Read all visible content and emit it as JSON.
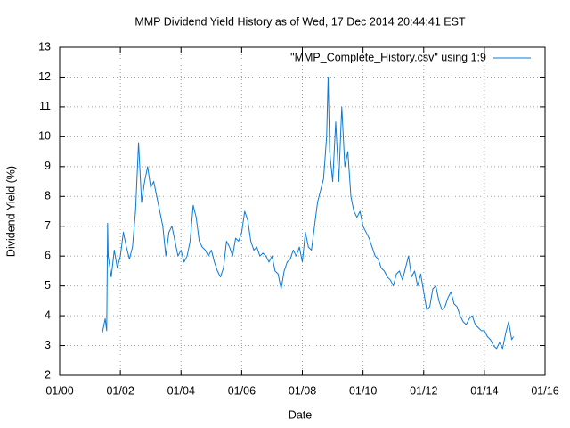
{
  "chart_data": {
    "type": "line",
    "title": "MMP Dividend Yield History as of Wed, 17 Dec 2014 20:44:41 EST",
    "x_label": "Date",
    "y_label": "Dividend Yield (%)",
    "xlim": [
      2000,
      2016
    ],
    "xticks": [
      {
        "value": 2000,
        "label": "01/00"
      },
      {
        "value": 2002,
        "label": "01/02"
      },
      {
        "value": 2004,
        "label": "01/04"
      },
      {
        "value": 2006,
        "label": "01/06"
      },
      {
        "value": 2008,
        "label": "01/08"
      },
      {
        "value": 2010,
        "label": "01/10"
      },
      {
        "value": 2012,
        "label": "01/12"
      },
      {
        "value": 2014,
        "label": "01/14"
      },
      {
        "value": 2016,
        "label": "01/16"
      }
    ],
    "ylim": [
      2,
      13
    ],
    "yticks": [
      2,
      3,
      4,
      5,
      6,
      7,
      8,
      9,
      10,
      11,
      12,
      13
    ],
    "grid": true,
    "legend": "top right",
    "series": [
      {
        "name": "\"MMP_Complete_History.csv\" using 1:9",
        "color": "#0a7ad6",
        "x": [
          2001.4,
          2001.5,
          2001.55,
          2001.58,
          2001.6,
          2001.7,
          2001.8,
          2001.9,
          2002.0,
          2002.1,
          2002.2,
          2002.3,
          2002.4,
          2002.5,
          2002.6,
          2002.7,
          2002.8,
          2002.9,
          2003.0,
          2003.1,
          2003.2,
          2003.3,
          2003.4,
          2003.5,
          2003.6,
          2003.7,
          2003.8,
          2003.9,
          2004.0,
          2004.1,
          2004.2,
          2004.3,
          2004.4,
          2004.5,
          2004.6,
          2004.7,
          2004.8,
          2004.9,
          2005.0,
          2005.1,
          2005.2,
          2005.3,
          2005.4,
          2005.5,
          2005.6,
          2005.7,
          2005.8,
          2005.9,
          2006.0,
          2006.1,
          2006.2,
          2006.3,
          2006.4,
          2006.5,
          2006.6,
          2006.7,
          2006.8,
          2006.9,
          2007.0,
          2007.1,
          2007.2,
          2007.3,
          2007.4,
          2007.5,
          2007.6,
          2007.7,
          2007.8,
          2007.9,
          2008.0,
          2008.1,
          2008.2,
          2008.3,
          2008.4,
          2008.5,
          2008.6,
          2008.7,
          2008.8,
          2008.85,
          2008.9,
          2009.0,
          2009.1,
          2009.2,
          2009.3,
          2009.4,
          2009.5,
          2009.6,
          2009.7,
          2009.8,
          2009.9,
          2010.0,
          2010.1,
          2010.2,
          2010.3,
          2010.4,
          2010.5,
          2010.6,
          2010.7,
          2010.8,
          2010.9,
          2011.0,
          2011.1,
          2011.2,
          2011.3,
          2011.4,
          2011.5,
          2011.6,
          2011.7,
          2011.8,
          2011.9,
          2012.0,
          2012.1,
          2012.2,
          2012.3,
          2012.4,
          2012.5,
          2012.6,
          2012.7,
          2012.8,
          2012.9,
          2013.0,
          2013.1,
          2013.2,
          2013.3,
          2013.4,
          2013.5,
          2013.6,
          2013.7,
          2013.8,
          2013.9,
          2014.0,
          2014.1,
          2014.2,
          2014.3,
          2014.4,
          2014.5,
          2014.6,
          2014.7,
          2014.8,
          2014.9,
          2014.96
        ],
        "values": [
          3.4,
          3.9,
          3.5,
          7.1,
          6.0,
          5.3,
          6.2,
          5.6,
          6.0,
          6.8,
          6.3,
          5.9,
          6.3,
          7.5,
          9.8,
          7.8,
          8.5,
          9.0,
          8.3,
          8.5,
          8.0,
          7.5,
          7.0,
          6.0,
          6.8,
          7.0,
          6.5,
          6.0,
          6.2,
          5.8,
          6.0,
          6.5,
          7.7,
          7.3,
          6.5,
          6.3,
          6.2,
          6.0,
          6.2,
          5.8,
          5.5,
          5.3,
          5.6,
          6.5,
          6.3,
          6.0,
          6.6,
          6.5,
          6.8,
          7.5,
          7.2,
          6.5,
          6.2,
          6.3,
          6.0,
          6.1,
          6.0,
          5.8,
          6.0,
          5.5,
          5.4,
          4.9,
          5.5,
          5.8,
          5.9,
          6.2,
          6.0,
          6.3,
          5.8,
          6.8,
          6.3,
          6.2,
          7.0,
          7.8,
          8.2,
          8.6,
          10.0,
          12.0,
          9.5,
          8.5,
          10.5,
          8.5,
          11.0,
          9.0,
          9.5,
          8.0,
          7.5,
          7.3,
          7.5,
          7.0,
          6.8,
          6.6,
          6.3,
          6.0,
          5.9,
          5.6,
          5.5,
          5.3,
          5.2,
          5.0,
          5.4,
          5.5,
          5.2,
          5.6,
          6.0,
          5.3,
          5.5,
          5.0,
          5.4,
          4.8,
          4.2,
          4.3,
          4.9,
          5.0,
          4.5,
          4.2,
          4.3,
          4.6,
          4.8,
          4.4,
          4.3,
          4.0,
          3.8,
          3.7,
          3.9,
          4.0,
          3.7,
          3.6,
          3.5,
          3.5,
          3.3,
          3.2,
          3.0,
          2.9,
          3.1,
          2.9,
          3.4,
          3.8,
          3.2,
          3.3
        ]
      }
    ]
  }
}
